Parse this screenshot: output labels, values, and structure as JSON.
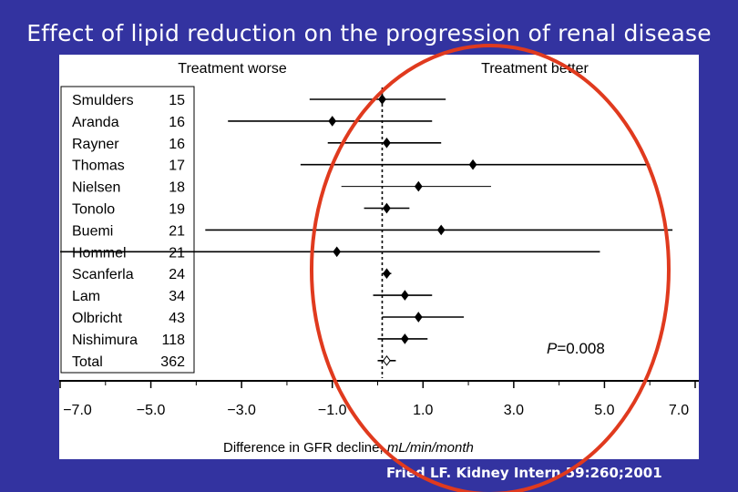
{
  "slide": {
    "title": "Effect of lipid reduction on the progression of renal disease",
    "citation": "Fried LF. Kidney Intern 59:260;2001"
  },
  "colors": {
    "background": "#3333a0",
    "panel": "#ffffff",
    "ink": "#000000",
    "annotation_oval": "#e03a1e"
  },
  "chart_data": {
    "type": "forest",
    "header_left": "Treatment worse",
    "header_right": "Treatment better",
    "xlabel_main": "Difference in GFR decline, ",
    "xlabel_unit": "mL/min/month",
    "xlim": [
      -7.0,
      7.0
    ],
    "xticks": [
      -7.0,
      -5.0,
      -3.0,
      -1.0,
      1.0,
      3.0,
      5.0,
      7.0
    ],
    "tick_labels": [
      "−7.0",
      "−5.0",
      "−3.0",
      "−1.0",
      "1.0",
      "3.0",
      "5.0",
      "7.0"
    ],
    "reference_line": 0.1,
    "studies": [
      {
        "name": "Smulders",
        "n": "15",
        "est": 0.1,
        "lo": -1.5,
        "hi": 1.5
      },
      {
        "name": "Aranda",
        "n": "16",
        "est": -1.0,
        "lo": -3.3,
        "hi": 1.2
      },
      {
        "name": "Rayner",
        "n": "16",
        "est": 0.2,
        "lo": -1.1,
        "hi": 1.4
      },
      {
        "name": "Thomas",
        "n": "17",
        "est": 2.1,
        "lo": -1.7,
        "hi": 6.0
      },
      {
        "name": "Nielsen",
        "n": "18",
        "est": 0.9,
        "lo": -0.8,
        "hi": 2.5
      },
      {
        "name": "Tonolo",
        "n": "19",
        "est": 0.2,
        "lo": -0.3,
        "hi": 0.7
      },
      {
        "name": "Buemi",
        "n": "21",
        "est": 1.4,
        "lo": -3.8,
        "hi": 6.5
      },
      {
        "name": "Hommel",
        "n": "21",
        "est": -0.9,
        "lo": -7.0,
        "hi": 4.9
      },
      {
        "name": "Scanferla",
        "n": "24",
        "est": 0.2,
        "lo": 0.1,
        "hi": 0.3
      },
      {
        "name": "Lam",
        "n": "34",
        "est": 0.6,
        "lo": -0.1,
        "hi": 1.2
      },
      {
        "name": "Olbricht",
        "n": "43",
        "est": 0.9,
        "lo": 0.1,
        "hi": 1.9
      },
      {
        "name": "Nishimura",
        "n": "118",
        "est": 0.6,
        "lo": 0.0,
        "hi": 1.1
      },
      {
        "name": "Total",
        "n": "362",
        "est": 0.2,
        "lo": 0.0,
        "hi": 0.4,
        "pooled": true
      }
    ],
    "p_label": "P",
    "p_value": "=0.008"
  }
}
